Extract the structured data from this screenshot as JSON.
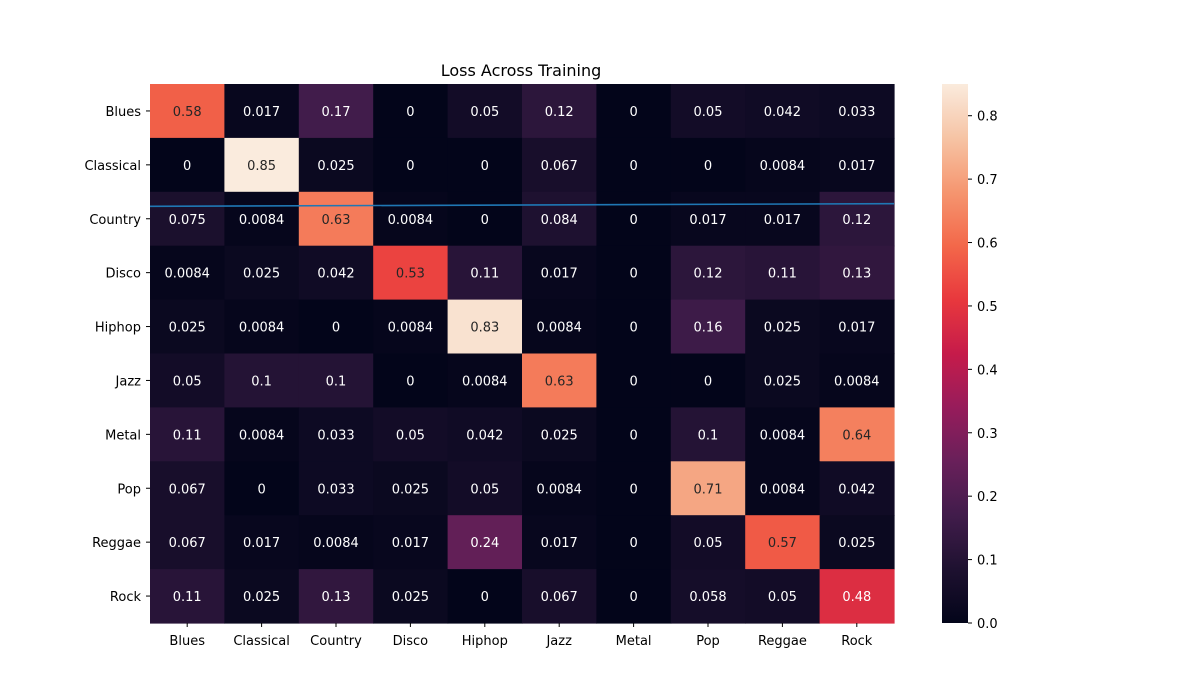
{
  "chart_data": {
    "type": "heatmap",
    "title": "Loss Across Training",
    "xlabel": "",
    "ylabel": "",
    "x_categories": [
      "Blues",
      "Classical",
      "Country",
      "Disco",
      "Hiphop",
      "Jazz",
      "Metal",
      "Pop",
      "Reggae",
      "Rock"
    ],
    "y_categories": [
      "Blues",
      "Classical",
      "Country",
      "Disco",
      "Hiphop",
      "Jazz",
      "Metal",
      "Pop",
      "Reggae",
      "Rock"
    ],
    "values": [
      [
        0.58,
        0.017,
        0.17,
        0,
        0.05,
        0.12,
        0,
        0.05,
        0.042,
        0.033
      ],
      [
        0,
        0.85,
        0.025,
        0,
        0,
        0.067,
        0,
        0,
        0.0084,
        0.017
      ],
      [
        0.075,
        0.0084,
        0.63,
        0.0084,
        0,
        0.084,
        0,
        0.017,
        0.017,
        0.12
      ],
      [
        0.0084,
        0.025,
        0.042,
        0.53,
        0.11,
        0.017,
        0,
        0.12,
        0.11,
        0.13
      ],
      [
        0.025,
        0.0084,
        0,
        0.0084,
        0.83,
        0.0084,
        0,
        0.16,
        0.025,
        0.017
      ],
      [
        0.05,
        0.1,
        0.1,
        0,
        0.0084,
        0.63,
        0,
        0,
        0.025,
        0.0084
      ],
      [
        0.11,
        0.0084,
        0.033,
        0.05,
        0.042,
        0.025,
        0,
        0.1,
        0.0084,
        0.64
      ],
      [
        0.067,
        0,
        0.033,
        0.025,
        0.05,
        0.0084,
        0,
        0.71,
        0.0084,
        0.042
      ],
      [
        0.067,
        0.017,
        0.0084,
        0.017,
        0.24,
        0.017,
        0,
        0.05,
        0.57,
        0.025
      ],
      [
        0.11,
        0.025,
        0.13,
        0.025,
        0,
        0.067,
        0,
        0.058,
        0.05,
        0.48
      ]
    ],
    "colorbar": {
      "range": [
        0,
        0.85
      ],
      "ticks": [
        "0.0",
        "0.1",
        "0.2",
        "0.3",
        "0.4",
        "0.5",
        "0.6",
        "0.7",
        "0.8"
      ]
    },
    "colormap": "rocket",
    "overlay_line": {
      "color": "#1f77b4",
      "row_position": [
        2.27,
        2.22
      ]
    },
    "grid": false
  }
}
